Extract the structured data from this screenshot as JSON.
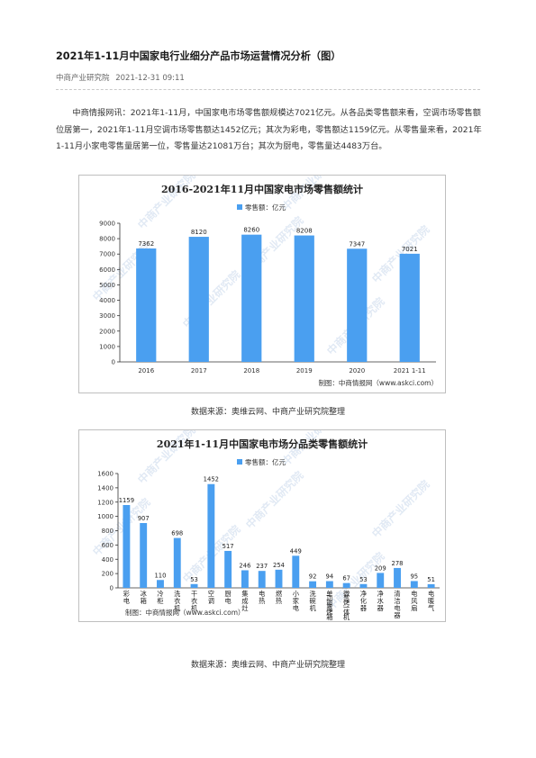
{
  "article": {
    "title": "2021年1-11月中国家电行业细分产品市场运营情况分析（图）",
    "publisher": "中商产业研究院",
    "datetime": "2021-12-31 09:11",
    "intro": "中商情报网讯：2021年1-11月，中国家电市场零售额规模达7021亿元。从各品类零售额来看，空调市场零售额位居第一，2021年1-11月空调市场零售额达1452亿元；其次为彩电，零售额达1159亿元。从零售量来看，2021年1-11月小家电零售量居第一位，零售量达21081万台；其次为厨电，零售量达4483万台。"
  },
  "watermark": "中商产业研究院",
  "colors": {
    "bar": "#4a9ff0",
    "axis": "#333333",
    "grid": "#e6e6e6",
    "border": "#bfbfbf"
  },
  "chart_data": [
    {
      "type": "bar",
      "title": "2016-2021年11月中国家电市场零售额统计",
      "legend": "零售额：亿元",
      "legend_position": "top-center",
      "categories": [
        "2016",
        "2017",
        "2018",
        "2019",
        "2020",
        "2021  1-11"
      ],
      "values": [
        7362,
        8120,
        8260,
        8208,
        7347,
        7021
      ],
      "yticks": [
        0,
        1000,
        2000,
        3000,
        4000,
        5000,
        6000,
        7000,
        8000,
        9000
      ],
      "ylim": [
        0,
        9000
      ],
      "grid": false,
      "credit": "制图：中商情报网（www.askci.com）"
    },
    {
      "type": "bar",
      "title": "2021年1-11月中国家电市场分品类零售额统计",
      "legend": "零售额：亿元",
      "legend_position": "top-center",
      "categories": [
        "彩电",
        "冰箱",
        "冷柜",
        "洗衣机",
        "干衣机",
        "空调",
        "厨电",
        "集成灶",
        "电热",
        "燃热",
        "小家电",
        "洗碗机",
        "单功能蒸烤箱",
        "微蒸烤一体机",
        "净化器",
        "净水器",
        "清洁电器",
        "电风扇",
        "电暖气"
      ],
      "values": [
        1159,
        907,
        110,
        698,
        53,
        1452,
        517,
        246,
        237,
        254,
        449,
        92,
        94,
        67,
        53,
        209,
        278,
        95,
        51
      ],
      "yticks": [
        0,
        200,
        400,
        600,
        800,
        1000,
        1200,
        1400,
        1600
      ],
      "ylim": [
        0,
        1600
      ],
      "grid": false,
      "credit": "制图：中商情报网（www.askci.com）"
    }
  ],
  "sources": [
    "数据来源：奥维云网、中商产业研究院整理",
    "数据来源：奥维云网、中商产业研究院整理"
  ]
}
